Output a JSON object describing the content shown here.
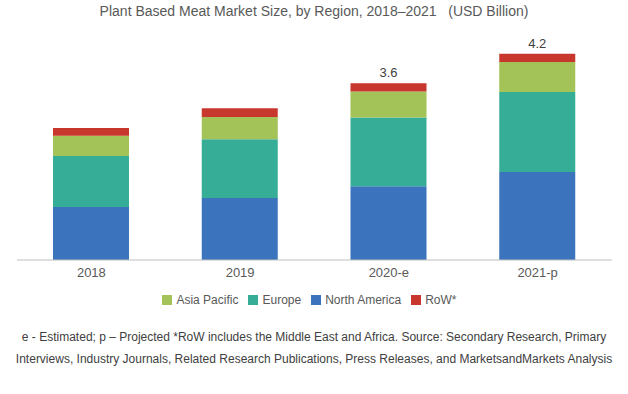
{
  "chart_data": {
    "type": "bar",
    "title": "Plant Based Meat Market Size, by Region, 2018–2021   (USD Billion)",
    "categories": [
      "2018",
      "2019",
      "2020-e",
      "2021-p"
    ],
    "series": [
      {
        "name": "North America",
        "color": "#3b74bc",
        "values": [
          1.08,
          1.26,
          1.5,
          1.79
        ]
      },
      {
        "name": "Europe",
        "color": "#36ad97",
        "values": [
          1.04,
          1.2,
          1.4,
          1.63
        ]
      },
      {
        "name": "Asia Pacific",
        "color": "#a3c257",
        "values": [
          0.41,
          0.45,
          0.53,
          0.61
        ]
      },
      {
        "name": "RoW*",
        "color": "#c8372d",
        "values": [
          0.16,
          0.18,
          0.17,
          0.17
        ]
      }
    ],
    "totals": [
      null,
      null,
      3.6,
      4.2
    ],
    "annotations": [
      "e - Estimated; p – Projected *RoW includes the Middle East and Africa. Source: Secondary Research, Primary Interviews, Industry Journals, Related Research Publications, Press Releases, and MarketsandMarkets Analysis"
    ],
    "stacked": true,
    "ylim": [
      0,
      4.5
    ],
    "yticks": [],
    "tick_labels": "x",
    "grid": false,
    "legend": "bottom"
  }
}
